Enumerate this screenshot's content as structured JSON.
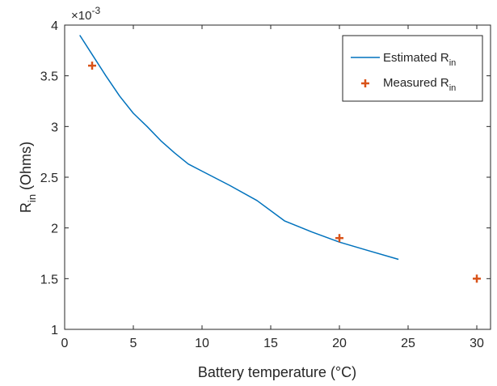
{
  "chart_data": {
    "type": "line",
    "xlabel": "Battery temperature (°C)",
    "ylabel": {
      "main": "R",
      "sub": "in",
      "rest": " (Ohms)"
    },
    "y_multiplier": {
      "base": "×10",
      "exp": "-3"
    },
    "xlim": [
      0,
      31
    ],
    "ylim": [
      1,
      4
    ],
    "x_ticks": [
      0,
      5,
      10,
      15,
      20,
      25,
      30
    ],
    "y_ticks": [
      1,
      1.5,
      2,
      2.5,
      3,
      3.5,
      4
    ],
    "y_tick_labels": [
      "1",
      "1.5",
      "2",
      "2.5",
      "3",
      "3.5",
      "4"
    ],
    "grid": false,
    "legend_position": "top-right",
    "series": [
      {
        "name": {
          "main": "Estimated R",
          "sub": "in"
        },
        "style": "line",
        "color": "#0072BD",
        "x": [
          1.1,
          2,
          3,
          4,
          5,
          6,
          7,
          8,
          9,
          10,
          12,
          14,
          16,
          18,
          20,
          22,
          24.3
        ],
        "y": [
          3.9,
          3.71,
          3.5,
          3.3,
          3.13,
          3.0,
          2.86,
          2.74,
          2.63,
          2.56,
          2.42,
          2.27,
          2.07,
          1.96,
          1.86,
          1.78,
          1.69
        ]
      },
      {
        "name": {
          "main": "Measured R",
          "sub": "in"
        },
        "style": "marker",
        "marker": "+",
        "color": "#D95319",
        "x": [
          2,
          20,
          30
        ],
        "y": [
          3.6,
          1.9,
          1.5
        ]
      }
    ]
  }
}
